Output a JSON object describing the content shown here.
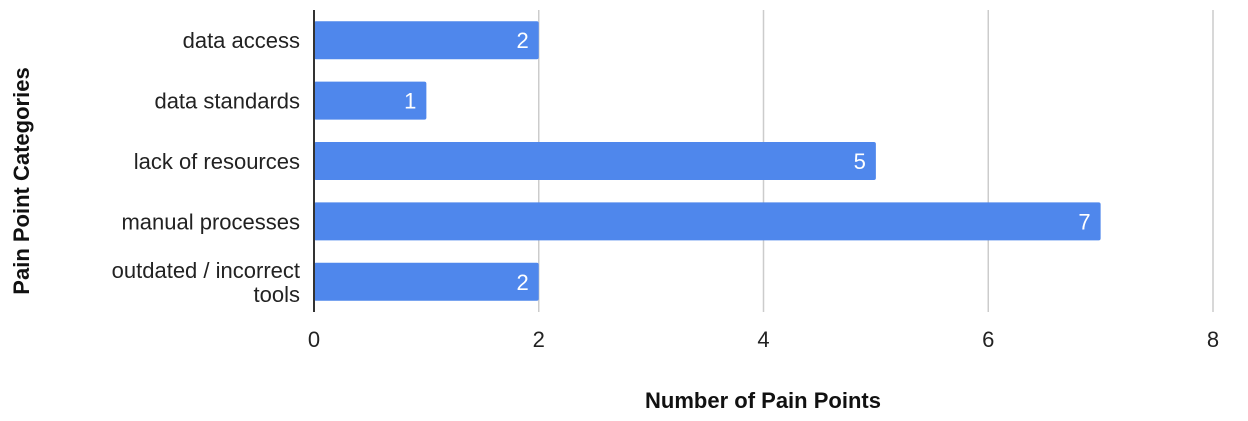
{
  "chart_data": {
    "type": "bar",
    "orientation": "horizontal",
    "categories": [
      "data access",
      "data standards",
      "lack of resources",
      "manual processes",
      "outdated / incorrect tools"
    ],
    "values": [
      2,
      1,
      5,
      7,
      2
    ],
    "xlabel": "Number of Pain Points",
    "ylabel": "Pain Point Categories",
    "xlim": [
      0,
      8
    ],
    "xticks": [
      "0",
      "2",
      "4",
      "6",
      "8"
    ],
    "grid": true,
    "legend": "none",
    "data_labels": true,
    "colors": {
      "bar": "#4f87ec",
      "grid": "#cccccc",
      "axis": "#333333",
      "bar_label": "#ffffff"
    }
  }
}
